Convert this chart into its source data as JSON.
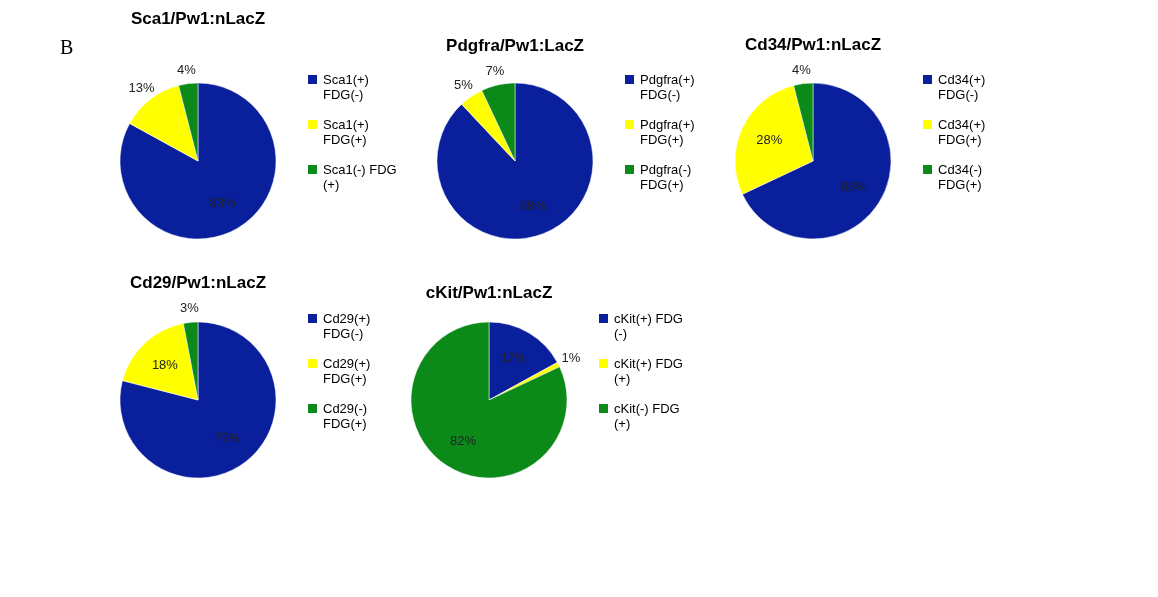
{
  "chart_data": [
    {
      "type": "pie",
      "title": "Sca1/Pw1:nLacZ",
      "annotations": [
        "B"
      ],
      "categories": [
        "Sca1(+) FDG(-)",
        "Sca1(+) FDG(+)",
        "Sca1(-) FDG (+)"
      ],
      "values": [
        83,
        13,
        4
      ],
      "value_labels": [
        "83%",
        "13%",
        "4%"
      ],
      "colors": [
        "#0a1f9c",
        "#ffff00",
        "#0b8a1a"
      ],
      "legend": "right"
    },
    {
      "type": "pie",
      "title": "Pdgfra/Pw1:LacZ",
      "categories": [
        "Pdgfra(+) FDG(-)",
        "Pdgfra(+) FDG(+)",
        "Pdgfra(-) FDG(+)"
      ],
      "values": [
        88,
        5,
        7
      ],
      "value_labels": [
        "88%",
        "5%",
        "7%"
      ],
      "colors": [
        "#0a1f9c",
        "#ffff00",
        "#0b8a1a"
      ],
      "legend": "right"
    },
    {
      "type": "pie",
      "title": "Cd34/Pw1:nLacZ",
      "categories": [
        "Cd34(+) FDG(-)",
        "Cd34(+) FDG(+)",
        "Cd34(-) FDG(+)"
      ],
      "values": [
        68,
        28,
        4
      ],
      "value_labels": [
        "68%",
        "28%",
        "4%"
      ],
      "colors": [
        "#0a1f9c",
        "#ffff00",
        "#0b8a1a"
      ],
      "legend": "right"
    },
    {
      "type": "pie",
      "title": "Cd29/Pw1:nLacZ",
      "categories": [
        "Cd29(+) FDG(-)",
        "Cd29(+) FDG(+)",
        "Cd29(-) FDG(+)"
      ],
      "values": [
        79,
        18,
        3
      ],
      "value_labels": [
        "79%",
        "18%",
        "3%"
      ],
      "colors": [
        "#0a1f9c",
        "#ffff00",
        "#0b8a1a"
      ],
      "legend": "right"
    },
    {
      "type": "pie",
      "title": "cKit/Pw1:nLacZ",
      "categories": [
        "cKit(+) FDG (-)",
        "cKit(+) FDG (+)",
        "cKit(-) FDG (+)"
      ],
      "values": [
        17,
        1,
        82
      ],
      "value_labels": [
        "17%",
        "1%",
        "82%"
      ],
      "colors": [
        "#0a1f9c",
        "#ffff00",
        "#0b8a1a"
      ],
      "legend": "right"
    }
  ]
}
